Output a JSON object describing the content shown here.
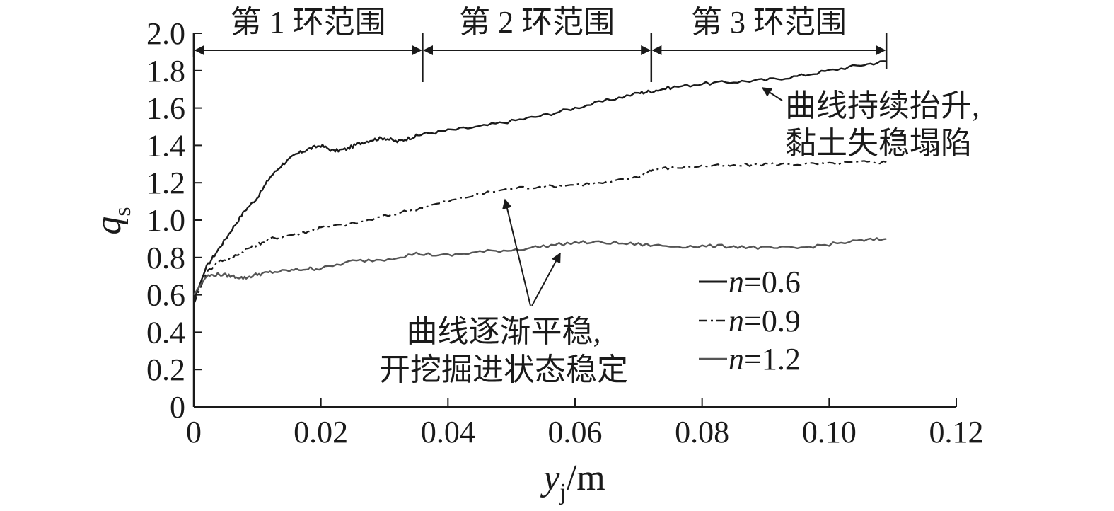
{
  "chart_data": {
    "type": "line",
    "title": "",
    "xlabel": {
      "main": "y",
      "sub": "j",
      "unit": "/m"
    },
    "ylabel": {
      "main": "q",
      "sub": "s"
    },
    "xlim": [
      0,
      0.12
    ],
    "ylim": [
      0,
      2.0
    ],
    "x_ticks": [
      "0",
      "0.02",
      "0.04",
      "0.06",
      "0.08",
      "0.10",
      "0.12"
    ],
    "x_tick_values": [
      0,
      0.02,
      0.04,
      0.06,
      0.08,
      0.1,
      0.12
    ],
    "y_ticks": [
      "0",
      "0.2",
      "0.4",
      "0.6",
      "0.8",
      "1.0",
      "1.2",
      "1.4",
      "1.6",
      "1.8",
      "2.0"
    ],
    "y_tick_values": [
      0,
      0.2,
      0.4,
      0.6,
      0.8,
      1.0,
      1.2,
      1.4,
      1.6,
      1.8,
      2.0
    ],
    "grid": false,
    "legend_position": "bottom-right",
    "series": [
      {
        "name": "n=0.6",
        "legend_var": "n",
        "legend_val": "=0.6",
        "style": "solid",
        "color": "#1a1a1a",
        "x": [
          0,
          0.002,
          0.004,
          0.006,
          0.008,
          0.01,
          0.012,
          0.014,
          0.016,
          0.018,
          0.02,
          0.022,
          0.024,
          0.026,
          0.028,
          0.03,
          0.032,
          0.034,
          0.036,
          0.04,
          0.045,
          0.05,
          0.055,
          0.06,
          0.065,
          0.07,
          0.072,
          0.075,
          0.08,
          0.085,
          0.09,
          0.095,
          0.1,
          0.105,
          0.109
        ],
        "y": [
          0.57,
          0.75,
          0.85,
          0.95,
          1.05,
          1.12,
          1.23,
          1.3,
          1.35,
          1.38,
          1.4,
          1.37,
          1.38,
          1.41,
          1.43,
          1.44,
          1.42,
          1.44,
          1.46,
          1.48,
          1.5,
          1.53,
          1.56,
          1.6,
          1.64,
          1.68,
          1.69,
          1.71,
          1.73,
          1.74,
          1.75,
          1.77,
          1.8,
          1.83,
          1.85
        ]
      },
      {
        "name": "n=0.9",
        "legend_var": "n",
        "legend_val": "=0.9",
        "style": "dashdot",
        "color": "#1a1a1a",
        "x": [
          0,
          0.002,
          0.004,
          0.006,
          0.008,
          0.01,
          0.012,
          0.015,
          0.018,
          0.02,
          0.025,
          0.03,
          0.035,
          0.04,
          0.045,
          0.05,
          0.055,
          0.06,
          0.065,
          0.07,
          0.072,
          0.075,
          0.08,
          0.085,
          0.09,
          0.095,
          0.1,
          0.105,
          0.109
        ],
        "y": [
          0.55,
          0.72,
          0.78,
          0.8,
          0.84,
          0.87,
          0.9,
          0.92,
          0.94,
          0.96,
          0.98,
          1.02,
          1.06,
          1.1,
          1.14,
          1.17,
          1.18,
          1.19,
          1.2,
          1.23,
          1.27,
          1.28,
          1.29,
          1.29,
          1.3,
          1.3,
          1.3,
          1.31,
          1.31
        ]
      },
      {
        "name": "n=1.2",
        "legend_var": "n",
        "legend_val": "=1.2",
        "style": "solid",
        "color": "#555555",
        "x": [
          0,
          0.002,
          0.004,
          0.006,
          0.008,
          0.01,
          0.012,
          0.015,
          0.018,
          0.02,
          0.025,
          0.03,
          0.035,
          0.04,
          0.045,
          0.05,
          0.055,
          0.06,
          0.065,
          0.07,
          0.075,
          0.08,
          0.085,
          0.09,
          0.095,
          0.1,
          0.105,
          0.109
        ],
        "y": [
          0.6,
          0.7,
          0.71,
          0.7,
          0.69,
          0.71,
          0.72,
          0.73,
          0.74,
          0.74,
          0.78,
          0.79,
          0.82,
          0.81,
          0.83,
          0.84,
          0.86,
          0.88,
          0.88,
          0.87,
          0.86,
          0.86,
          0.86,
          0.85,
          0.85,
          0.87,
          0.89,
          0.9
        ]
      }
    ],
    "ring_markers": {
      "boundaries_x": [
        0,
        0.036,
        0.072,
        0.109
      ],
      "labels": [
        "第 1 环范围",
        "第 2 环范围",
        "第 3 环范围"
      ]
    },
    "annotations": [
      {
        "lines": [
          "曲线持续抬升,",
          "黏土失稳塌陷"
        ]
      },
      {
        "lines": [
          "曲线逐渐平稳,",
          "开挖掘进状态稳定"
        ]
      }
    ]
  }
}
